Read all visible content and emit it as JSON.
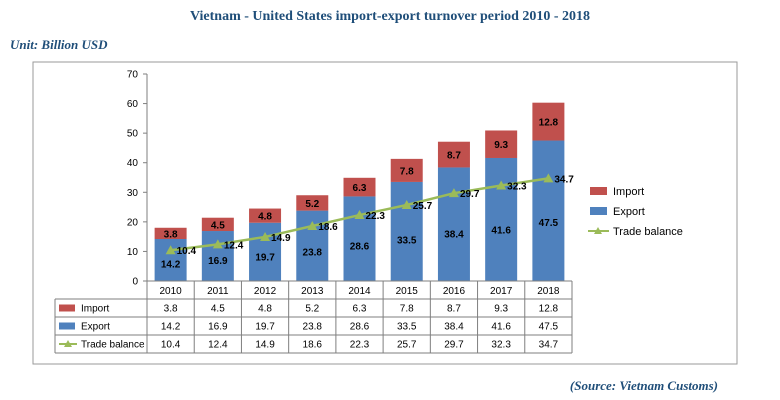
{
  "title": "Vietnam - United States import-export turnover period 2010 - 2018",
  "unit": "Unit: Billion USD",
  "source": "(Source: Vietnam Customs)",
  "colors": {
    "import": "#c0504d",
    "export": "#4f81bd",
    "trade_balance": "#9bbb59"
  },
  "chart_data": {
    "type": "bar",
    "stacked": true,
    "categories": [
      "2010",
      "2011",
      "2012",
      "2013",
      "2014",
      "2015",
      "2016",
      "2017",
      "2018"
    ],
    "series": [
      {
        "name": "Export",
        "type": "bar",
        "values": [
          14.2,
          16.9,
          19.7,
          23.8,
          28.6,
          33.5,
          38.4,
          41.6,
          47.5
        ]
      },
      {
        "name": "Import",
        "type": "bar",
        "values": [
          3.8,
          4.5,
          4.8,
          5.2,
          6.3,
          7.8,
          8.7,
          9.3,
          12.8
        ]
      },
      {
        "name": "Trade balance",
        "type": "line",
        "values": [
          10.4,
          12.4,
          14.9,
          18.6,
          22.3,
          25.7,
          29.7,
          32.3,
          34.7
        ]
      }
    ],
    "ylim": [
      0,
      70
    ],
    "yticks": [
      0,
      10,
      20,
      30,
      40,
      50,
      60,
      70
    ],
    "grid": false,
    "legend": "right",
    "data_table": true
  }
}
